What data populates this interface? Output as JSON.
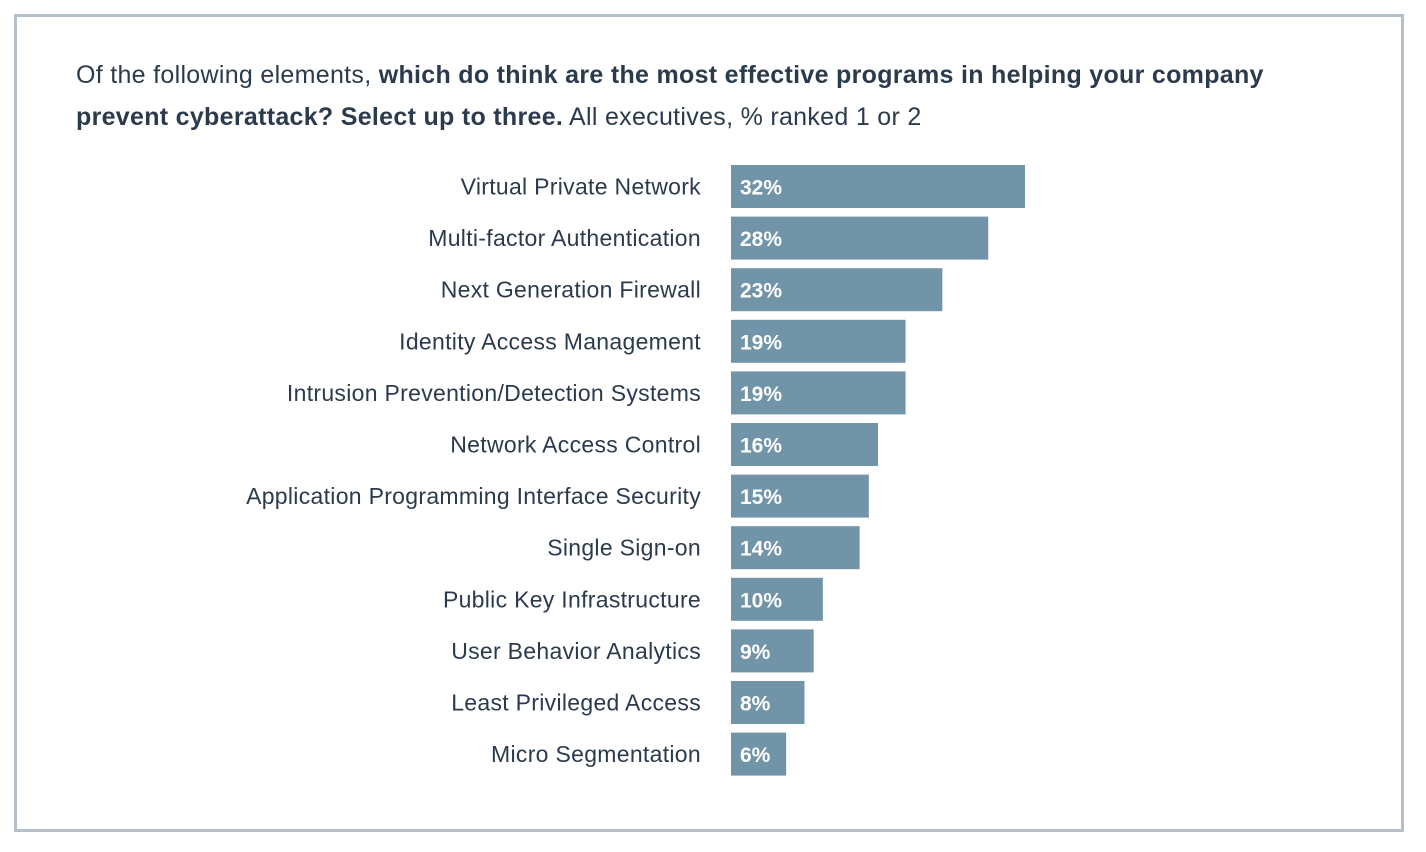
{
  "question": {
    "lead": "Of the following elements, ",
    "bold": "which do think are the most effective programs in helping your company prevent cyberattack? Select up to three.",
    "tail": " All executives, % ranked 1 or 2"
  },
  "colors": {
    "bar": "#7194a8",
    "text": "#2b3a4c",
    "frame": "#b4c0ca",
    "value_text": "#ffffff"
  },
  "chart_data": {
    "type": "bar",
    "orientation": "horizontal",
    "categories": [
      "Virtual Private Network",
      "Multi-factor Authentication",
      "Next Generation Firewall",
      "Identity Access Management",
      "Intrusion Prevention/Detection Systems",
      "Network Access Control",
      "Application Programming Interface Security",
      "Single Sign-on",
      "Public Key Infrastructure",
      "User Behavior Analytics",
      "Least Privileged Access",
      "Micro Segmentation"
    ],
    "values": [
      32,
      28,
      23,
      19,
      19,
      16,
      15,
      14,
      10,
      9,
      8,
      6
    ],
    "value_labels": [
      "32%",
      "28%",
      "23%",
      "19%",
      "19%",
      "16%",
      "15%",
      "14%",
      "10%",
      "9%",
      "8%",
      "6%"
    ],
    "unit": "%",
    "grid": false,
    "legend": "none"
  }
}
